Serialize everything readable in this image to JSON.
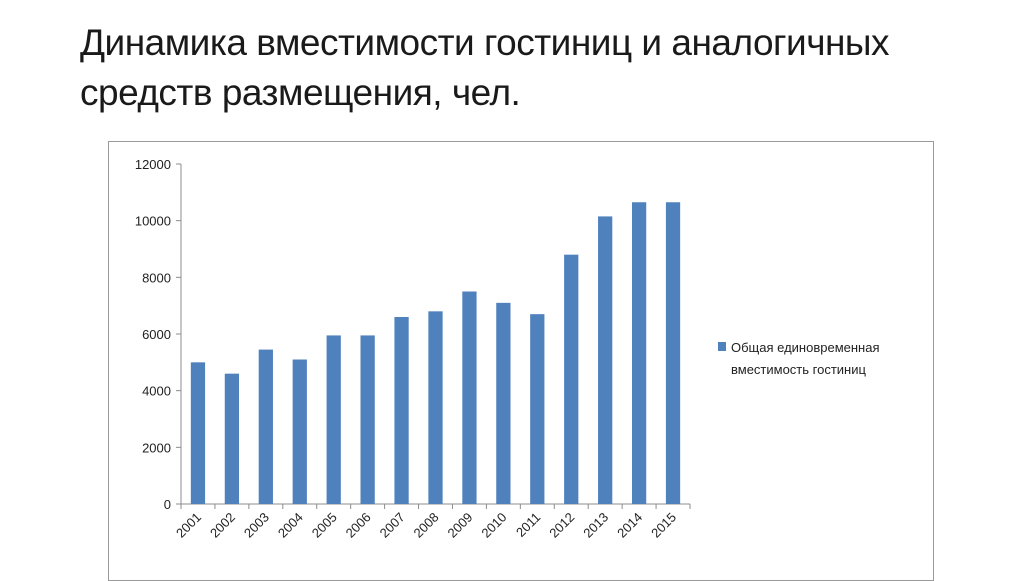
{
  "title": "Динамика вместимости гостиниц и аналогичных средств размещения, чел.",
  "chart_data": {
    "type": "bar",
    "title": "",
    "xlabel": "",
    "ylabel": "",
    "categories": [
      "2001",
      "2002",
      "2003",
      "2004",
      "2005",
      "2006",
      "2007",
      "2008",
      "2009",
      "2010",
      "2011",
      "2012",
      "2013",
      "2014",
      "2015"
    ],
    "series": [
      {
        "name": "Общая единовременная вместимость гостиниц",
        "color": "#4f81bd",
        "values": [
          5000,
          4600,
          5450,
          5100,
          5950,
          5950,
          6600,
          6800,
          7500,
          7100,
          6700,
          8800,
          10150,
          10650,
          10650
        ]
      }
    ],
    "ylim": [
      0,
      12000
    ],
    "yticks": [
      0,
      2000,
      4000,
      6000,
      8000,
      10000,
      12000
    ],
    "grid": false,
    "legend": "right",
    "legend_lines": [
      "Общая единовременная",
      "вместимость гостиниц"
    ]
  }
}
